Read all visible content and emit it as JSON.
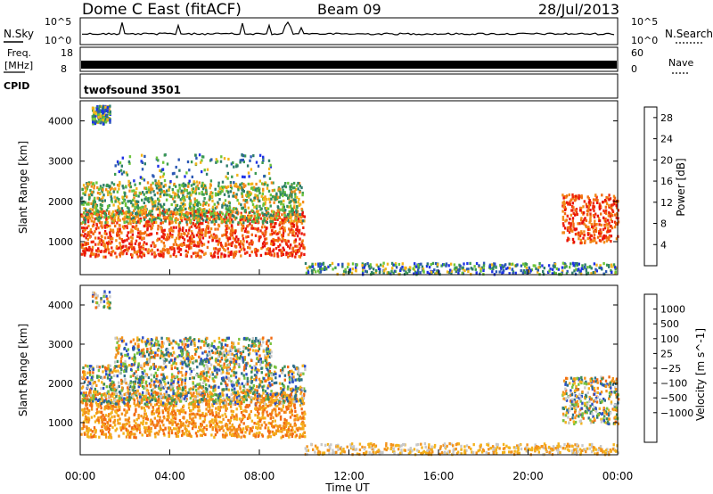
{
  "header": {
    "station": "Dome C East (fitACF)",
    "beam": "Beam 09",
    "date": "28/Jul/2013"
  },
  "left_labels": {
    "nsky": "N.Sky",
    "freq_line1": "Freq.",
    "freq_line2": "[MHz]",
    "cpid": "CPID"
  },
  "right_labels": {
    "nsearch": "N.Search",
    "nave": "Nave"
  },
  "cpid_text": "twofsound 3501",
  "colors": {
    "power": [
      "#1e32e6",
      "#2b58b4",
      "#2e7d6b",
      "#3b9a52",
      "#6cc43a",
      "#f2b51b",
      "#f38a1a",
      "#f26a12",
      "#ef2a0e",
      "#e8100a"
    ],
    "velocity": [
      "#2a4ec8",
      "#2e6e8a",
      "#3b8e58",
      "#78c23e",
      "#c8c8c8",
      "#f4b21c",
      "#f3921a",
      "#f26a12",
      "#ee3010",
      "#e8100a"
    ]
  },
  "chart_data": [
    {
      "type": "line",
      "name": "N.Sky",
      "yticks": [
        "10^5",
        "10^0"
      ],
      "right_yticks": [
        "10^5",
        "10^0"
      ]
    },
    {
      "type": "line",
      "name": "Freq.",
      "ylabel": "[MHz]",
      "yticks": [
        "18",
        "8"
      ],
      "right_yticks": [
        "60",
        "0"
      ]
    },
    {
      "type": "heatmap",
      "title": "Power",
      "xlabel": "Time UT",
      "ylabel": "Slant Range [km]",
      "xticks": [
        "00:00",
        "04:00",
        "08:00",
        "12:00",
        "16:00",
        "20:00",
        "00:00"
      ],
      "xlim_hours": [
        0,
        24
      ],
      "ylim_km": [
        180,
        4500
      ],
      "yticks": [
        1000,
        2000,
        3000,
        4000
      ],
      "colorbar": {
        "label": "Power [dB]",
        "ticks": [
          4,
          8,
          12,
          16,
          20,
          24,
          28
        ],
        "range": [
          0,
          30
        ]
      },
      "scatter_regions": [
        {
          "t0": 0.0,
          "t1": 10.0,
          "r0": 650,
          "r1": 1800,
          "class": "high"
        },
        {
          "t0": 0.0,
          "t1": 10.0,
          "r0": 1500,
          "r1": 2500,
          "class": "mid"
        },
        {
          "t0": 1.5,
          "t1": 8.5,
          "r0": 2500,
          "r1": 3200,
          "class": "low"
        },
        {
          "t0": 0.5,
          "t1": 1.3,
          "r0": 3950,
          "r1": 4400,
          "class": "low"
        },
        {
          "t0": 10.0,
          "t1": 24.0,
          "r0": 220,
          "r1": 500,
          "class": "sparse"
        },
        {
          "t0": 21.5,
          "t1": 24.0,
          "r0": 1000,
          "r1": 2200,
          "class": "high"
        }
      ]
    },
    {
      "type": "heatmap",
      "title": "Velocity",
      "xlabel": "Time UT",
      "ylabel": "Slant Range [km]",
      "xticks": [
        "00:00",
        "04:00",
        "08:00",
        "12:00",
        "16:00",
        "20:00",
        "00:00"
      ],
      "xlim_hours": [
        0,
        24
      ],
      "ylim_km": [
        180,
        4500
      ],
      "yticks": [
        1000,
        2000,
        3000,
        4000
      ],
      "colorbar": {
        "label": "Velocity [m s^-1]",
        "ticks": [
          "1000",
          "500",
          "100",
          "25",
          "−25",
          "−100",
          "−500",
          "−1000"
        ]
      },
      "scatter_regions": [
        {
          "t0": 0.0,
          "t1": 10.0,
          "r0": 650,
          "r1": 1800,
          "class": "negative"
        },
        {
          "t0": 0.0,
          "t1": 10.0,
          "r0": 1500,
          "r1": 2500,
          "class": "mixed"
        },
        {
          "t0": 1.5,
          "t1": 8.5,
          "r0": 2500,
          "r1": 3200,
          "class": "mixed"
        },
        {
          "t0": 0.5,
          "t1": 1.3,
          "r0": 3950,
          "r1": 4400,
          "class": "mixed"
        },
        {
          "t0": 10.0,
          "t1": 24.0,
          "r0": 220,
          "r1": 500,
          "class": "sparse"
        },
        {
          "t0": 21.5,
          "t1": 24.0,
          "r0": 1000,
          "r1": 2200,
          "class": "mixed"
        }
      ]
    }
  ]
}
